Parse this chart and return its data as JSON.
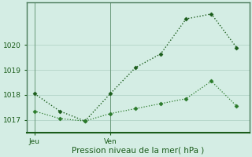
{
  "xlabel": "Pression niveau de la mer( hPa )",
  "ylim": [
    1016.5,
    1021.7
  ],
  "yticks": [
    1017,
    1018,
    1019,
    1020
  ],
  "background_color": "#d4ede4",
  "grid_color": "#b8d8cc",
  "line1_color": "#1a5c1a",
  "line2_color": "#2a7a2a",
  "line1_x": [
    0,
    1,
    2,
    3,
    4,
    5,
    6,
    7,
    8
  ],
  "line1_y": [
    1018.05,
    1017.35,
    1016.95,
    1018.05,
    1019.1,
    1019.65,
    1021.05,
    1021.25,
    1019.9
  ],
  "line2_x": [
    0,
    1,
    2,
    3,
    4,
    5,
    6,
    7,
    8
  ],
  "line2_y": [
    1017.35,
    1017.05,
    1016.95,
    1017.25,
    1017.45,
    1017.65,
    1017.85,
    1018.55,
    1017.55
  ],
  "xtick_positions": [
    0,
    3
  ],
  "xtick_labels": [
    "Jeu",
    "Ven"
  ],
  "vline_x": [
    0,
    3
  ],
  "marker": "D",
  "markersize": 2.5,
  "linewidth1": 1.0,
  "linewidth2": 0.9,
  "xlabel_fontsize": 7.5,
  "tick_fontsize": 6.5
}
